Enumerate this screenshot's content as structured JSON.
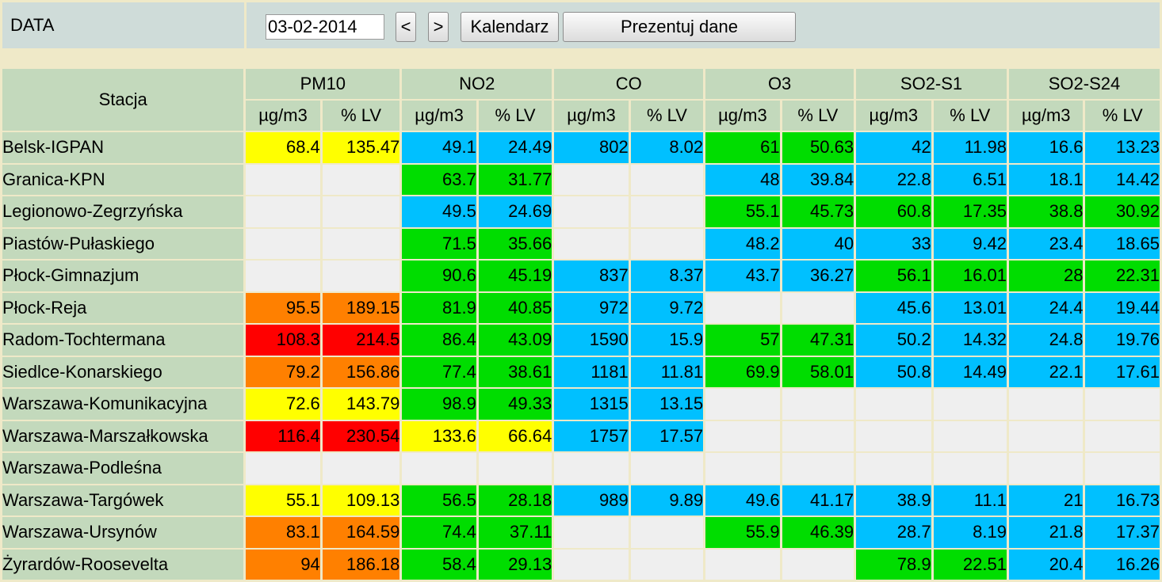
{
  "header": {
    "label": "DATA",
    "date_value": "03-02-2014",
    "prev_label": "<",
    "next_label": ">",
    "calendar_label": "Kalendarz",
    "show_label": "Prezentuj dane"
  },
  "table": {
    "station_header": "Stacja",
    "pollutants": [
      "PM10",
      "NO2",
      "CO",
      "O3",
      "SO2-S1",
      "SO2-S24"
    ],
    "unit_headers": [
      "µg/m3",
      "% LV"
    ],
    "colors": {
      "empty": "#efefef",
      "yellow": "#ffff00",
      "blue": "#00c0ff",
      "green": "#00dd00",
      "orange": "#ff8000",
      "red": "#ff0000"
    },
    "rows": [
      {
        "station": "Belsk-IGPAN",
        "cells": [
          [
            "68.4",
            "135.47",
            "yellow"
          ],
          [
            "49.1",
            "24.49",
            "blue"
          ],
          [
            "802",
            "8.02",
            "blue"
          ],
          [
            "61",
            "50.63",
            "green"
          ],
          [
            "42",
            "11.98",
            "blue"
          ],
          [
            "16.6",
            "13.23",
            "blue"
          ]
        ]
      },
      {
        "station": "Granica-KPN",
        "cells": [
          [
            "",
            "",
            "empty"
          ],
          [
            "63.7",
            "31.77",
            "green"
          ],
          [
            "",
            "",
            "empty"
          ],
          [
            "48",
            "39.84",
            "blue"
          ],
          [
            "22.8",
            "6.51",
            "blue"
          ],
          [
            "18.1",
            "14.42",
            "blue"
          ]
        ]
      },
      {
        "station": "Legionowo-Zegrzyńska",
        "cells": [
          [
            "",
            "",
            "empty"
          ],
          [
            "49.5",
            "24.69",
            "blue"
          ],
          [
            "",
            "",
            "empty"
          ],
          [
            "55.1",
            "45.73",
            "green"
          ],
          [
            "60.8",
            "17.35",
            "green"
          ],
          [
            "38.8",
            "30.92",
            "green"
          ]
        ]
      },
      {
        "station": "Piastów-Pułaskiego",
        "cells": [
          [
            "",
            "",
            "empty"
          ],
          [
            "71.5",
            "35.66",
            "green"
          ],
          [
            "",
            "",
            "empty"
          ],
          [
            "48.2",
            "40",
            "blue"
          ],
          [
            "33",
            "9.42",
            "blue"
          ],
          [
            "23.4",
            "18.65",
            "blue"
          ]
        ]
      },
      {
        "station": "Płock-Gimnazjum",
        "cells": [
          [
            "",
            "",
            "empty"
          ],
          [
            "90.6",
            "45.19",
            "green"
          ],
          [
            "837",
            "8.37",
            "blue"
          ],
          [
            "43.7",
            "36.27",
            "blue"
          ],
          [
            "56.1",
            "16.01",
            "green"
          ],
          [
            "28",
            "22.31",
            "green"
          ]
        ]
      },
      {
        "station": "Płock-Reja",
        "cells": [
          [
            "95.5",
            "189.15",
            "orange"
          ],
          [
            "81.9",
            "40.85",
            "green"
          ],
          [
            "972",
            "9.72",
            "blue"
          ],
          [
            "",
            "",
            "empty"
          ],
          [
            "45.6",
            "13.01",
            "blue"
          ],
          [
            "24.4",
            "19.44",
            "blue"
          ]
        ]
      },
      {
        "station": "Radom-Tochtermana",
        "cells": [
          [
            "108.3",
            "214.5",
            "red"
          ],
          [
            "86.4",
            "43.09",
            "green"
          ],
          [
            "1590",
            "15.9",
            "blue"
          ],
          [
            "57",
            "47.31",
            "green"
          ],
          [
            "50.2",
            "14.32",
            "blue"
          ],
          [
            "24.8",
            "19.76",
            "blue"
          ]
        ]
      },
      {
        "station": "Siedlce-Konarskiego",
        "cells": [
          [
            "79.2",
            "156.86",
            "orange"
          ],
          [
            "77.4",
            "38.61",
            "green"
          ],
          [
            "1181",
            "11.81",
            "blue"
          ],
          [
            "69.9",
            "58.01",
            "green"
          ],
          [
            "50.8",
            "14.49",
            "blue"
          ],
          [
            "22.1",
            "17.61",
            "blue"
          ]
        ]
      },
      {
        "station": "Warszawa-Komunikacyjna",
        "cells": [
          [
            "72.6",
            "143.79",
            "yellow"
          ],
          [
            "98.9",
            "49.33",
            "green"
          ],
          [
            "1315",
            "13.15",
            "blue"
          ],
          [
            "",
            "",
            "empty"
          ],
          [
            "",
            "",
            "empty"
          ],
          [
            "",
            "",
            "empty"
          ]
        ]
      },
      {
        "station": "Warszawa-Marszałkowska",
        "cells": [
          [
            "116.4",
            "230.54",
            "red"
          ],
          [
            "133.6",
            "66.64",
            "yellow"
          ],
          [
            "1757",
            "17.57",
            "blue"
          ],
          [
            "",
            "",
            "empty"
          ],
          [
            "",
            "",
            "empty"
          ],
          [
            "",
            "",
            "empty"
          ]
        ]
      },
      {
        "station": "Warszawa-Podleśna",
        "cells": [
          [
            "",
            "",
            "empty"
          ],
          [
            "",
            "",
            "empty"
          ],
          [
            "",
            "",
            "empty"
          ],
          [
            "",
            "",
            "empty"
          ],
          [
            "",
            "",
            "empty"
          ],
          [
            "",
            "",
            "empty"
          ]
        ]
      },
      {
        "station": "Warszawa-Targówek",
        "cells": [
          [
            "55.1",
            "109.13",
            "yellow"
          ],
          [
            "56.5",
            "28.18",
            "green"
          ],
          [
            "989",
            "9.89",
            "blue"
          ],
          [
            "49.6",
            "41.17",
            "blue"
          ],
          [
            "38.9",
            "11.1",
            "blue"
          ],
          [
            "21",
            "16.73",
            "blue"
          ]
        ]
      },
      {
        "station": "Warszawa-Ursynów",
        "cells": [
          [
            "83.1",
            "164.59",
            "orange"
          ],
          [
            "74.4",
            "37.11",
            "green"
          ],
          [
            "",
            "",
            "empty"
          ],
          [
            "55.9",
            "46.39",
            "green"
          ],
          [
            "28.7",
            "8.19",
            "blue"
          ],
          [
            "21.8",
            "17.37",
            "blue"
          ]
        ]
      },
      {
        "station": "Żyrardów-Roosevelta",
        "cells": [
          [
            "94",
            "186.18",
            "orange"
          ],
          [
            "58.4",
            "29.13",
            "green"
          ],
          [
            "",
            "",
            "empty"
          ],
          [
            "",
            "",
            "empty"
          ],
          [
            "78.9",
            "22.51",
            "green"
          ],
          [
            "20.4",
            "16.26",
            "blue"
          ]
        ]
      }
    ]
  }
}
